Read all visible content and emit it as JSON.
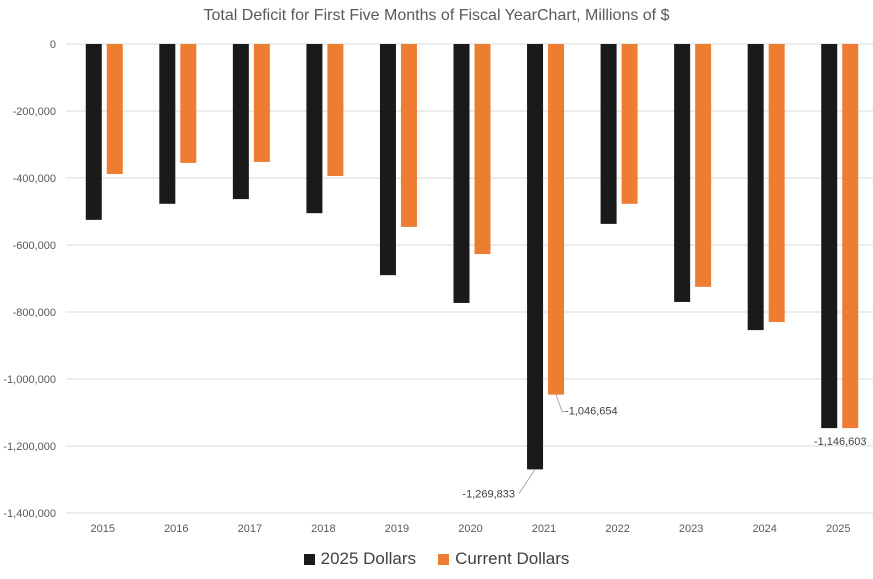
{
  "chart_data": {
    "type": "bar",
    "title": "Total Deficit for First Five Months of Fiscal YearChart, Millions of $",
    "xlabel": "",
    "ylabel": "",
    "ylim": [
      -1400000,
      0
    ],
    "yticks": [
      0,
      -200000,
      -400000,
      -600000,
      -800000,
      -1000000,
      -1200000,
      -1400000
    ],
    "ytick_labels": [
      "0",
      "-200,000",
      "-400,000",
      "-600,000",
      "-800,000",
      "-1,000,000",
      "-1,200,000",
      "-1,400,000"
    ],
    "grid": true,
    "legend": "bottom",
    "categories": [
      "2015",
      "2016",
      "2017",
      "2018",
      "2019",
      "2020",
      "2021",
      "2022",
      "2023",
      "2024",
      "2025"
    ],
    "series": [
      {
        "name": "2025 Dollars",
        "color": "#1a1a1a",
        "values": [
          -525000,
          -477000,
          -463000,
          -505000,
          -690000,
          -773000,
          -1269833,
          -537000,
          -770000,
          -854000,
          -1146603
        ]
      },
      {
        "name": "Current Dollars",
        "color": "#ed7d31",
        "values": [
          -388000,
          -355000,
          -352000,
          -394000,
          -546000,
          -627000,
          -1046654,
          -477000,
          -725000,
          -830000,
          -1146603
        ]
      }
    ],
    "data_labels": [
      {
        "category": "2021",
        "series": "2025 Dollars",
        "text": "-1,269,833"
      },
      {
        "category": "2021",
        "series": "Current Dollars",
        "text": "-1,046,654"
      },
      {
        "category": "2025",
        "series": "Current Dollars",
        "text": "-1,146,603"
      }
    ]
  }
}
